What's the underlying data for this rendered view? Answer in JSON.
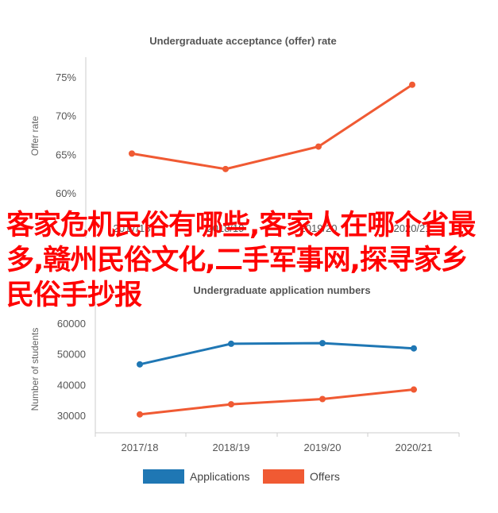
{
  "chart_data": [
    {
      "type": "line",
      "title": "Undergraduate acceptance (offer) rate",
      "ylabel": "Offer rate",
      "xlabel": "",
      "categories": [
        "2017/18",
        "2018/19",
        "2019/20",
        "2020/21"
      ],
      "yticks": [
        "60%",
        "65%",
        "70%",
        "75%"
      ],
      "ylim": [
        60,
        75
      ],
      "series": [
        {
          "values": [
            65.1,
            63.1,
            66.0,
            74.0
          ],
          "color": "#f05a33"
        }
      ]
    },
    {
      "type": "line",
      "title": "Undergraduate application numbers",
      "ylabel": "Number of students",
      "xlabel": "",
      "categories": [
        "2017/18",
        "2018/19",
        "2019/20",
        "2020/21"
      ],
      "yticks": [
        "30000",
        "40000",
        "50000",
        "60000"
      ],
      "ylim": [
        30000,
        60000
      ],
      "legend_position": "bottom",
      "series": [
        {
          "name": "Applications",
          "values": [
            46600,
            53300,
            53500,
            51800
          ],
          "color": "#1f77b4"
        },
        {
          "name": "Offers",
          "values": [
            30300,
            33600,
            35300,
            38400
          ],
          "color": "#f05a33"
        }
      ]
    }
  ],
  "overlay_text": "客家危机民俗有哪些,客家人在哪个省最多,赣州民俗文化,二手军事网,探寻家乡民俗手抄报"
}
